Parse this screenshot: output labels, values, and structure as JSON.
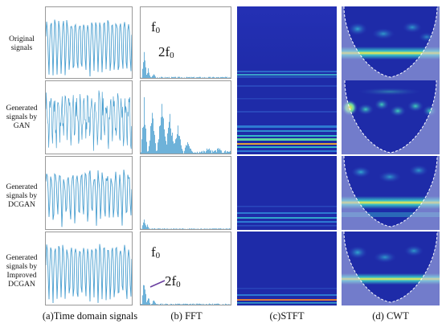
{
  "row_labels": [
    "Original signals",
    "Generated signals by GAN",
    "Generated signals by DCGAN",
    "Generated signals by Improved DCGAN"
  ],
  "column_labels": [
    "(a)Time domain signals",
    "(b) FFT",
    "(c)STFT",
    "(d) CWT"
  ],
  "annotations": {
    "row1_f0_base": "f",
    "row1_f0_sub": "0",
    "row1_2f0_base": "2f",
    "row1_2f0_sub": "0",
    "row4_f0_base": "f",
    "row4_f0_sub": "0",
    "row4_2f0_base": "2f",
    "row4_2f0_sub": "0"
  },
  "colors": {
    "signal": "#4a9fd0",
    "spectrogram_bg": "#1e2ba8",
    "cwt_ridge": "#f5e84a",
    "arrow": "#6a3fa0"
  }
}
